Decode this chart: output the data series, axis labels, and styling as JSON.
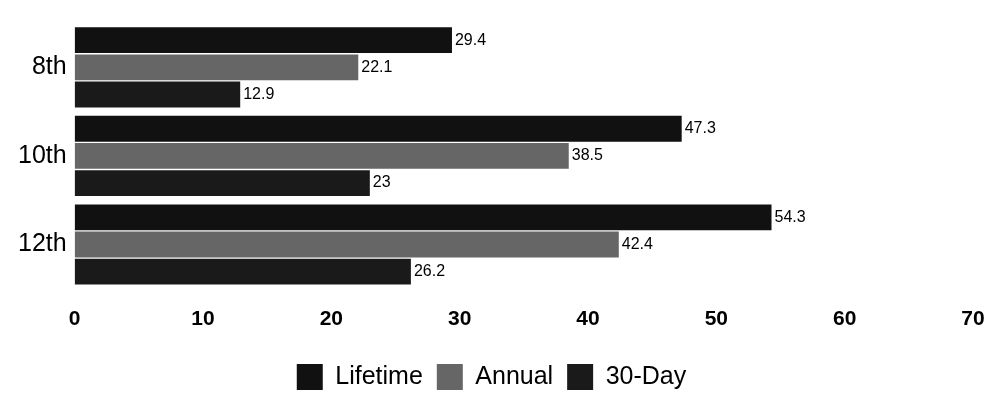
{
  "chart_data": {
    "type": "bar",
    "orientation": "horizontal",
    "categories": [
      "8th",
      "10th",
      "12th"
    ],
    "series": [
      {
        "name": "Lifetime",
        "color": "#111111",
        "values": [
          29.4,
          47.3,
          54.3
        ]
      },
      {
        "name": "Annual",
        "color": "#666666",
        "values": [
          22.1,
          38.5,
          42.4
        ]
      },
      {
        "name": "30-Day",
        "color": "#1a1a1a",
        "values": [
          12.9,
          23,
          26.2
        ]
      }
    ],
    "xlim": [
      0,
      70
    ],
    "xticks": [
      0,
      10,
      20,
      30,
      40,
      50,
      60,
      70
    ],
    "grid": false,
    "legend": "bottom",
    "data_labels": true
  }
}
